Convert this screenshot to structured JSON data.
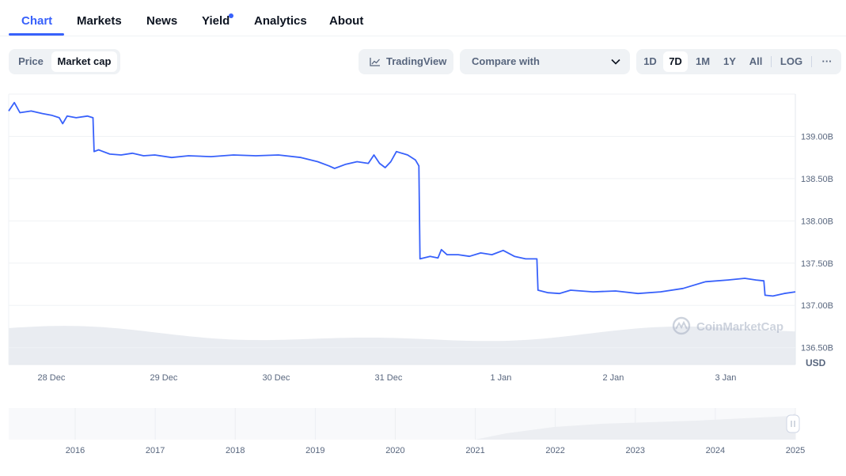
{
  "tabs": [
    {
      "label": "Chart"
    },
    {
      "label": "Markets"
    },
    {
      "label": "News"
    },
    {
      "label": "Yield"
    },
    {
      "label": "Analytics"
    },
    {
      "label": "About"
    }
  ],
  "toggle": {
    "price": "Price",
    "market_cap": "Market cap"
  },
  "tradingview_label": "TradingView",
  "compare_label": "Compare with",
  "ranges": [
    "1D",
    "7D",
    "1M",
    "1Y",
    "All"
  ],
  "log_label": "LOG",
  "more_label": "···",
  "watermark": "CoinMarketCap",
  "currency": "USD",
  "colors": {
    "line": "#3861fb",
    "accent": "#3861fb",
    "volume": "#e9ecf1",
    "grid": "#eff2f5",
    "overview": "#eceef2"
  },
  "chart_data": {
    "type": "line",
    "title": "",
    "ylabel": "USD",
    "ylim": [
      136.3,
      139.5
    ],
    "yticks": [
      {
        "v": 136.5,
        "label": "136.50B"
      },
      {
        "v": 137.0,
        "label": "137.00B"
      },
      {
        "v": 137.5,
        "label": "137.50B"
      },
      {
        "v": 138.0,
        "label": "138.00B"
      },
      {
        "v": 138.5,
        "label": "138.50B"
      },
      {
        "v": 139.0,
        "label": "139.00B"
      }
    ],
    "xlim": [
      0,
      7.0
    ],
    "xticks": [
      {
        "v": 0.38,
        "label": "28 Dec"
      },
      {
        "v": 1.38,
        "label": "29 Dec"
      },
      {
        "v": 2.38,
        "label": "30 Dec"
      },
      {
        "v": 3.38,
        "label": "31 Dec"
      },
      {
        "v": 4.38,
        "label": "1 Jan"
      },
      {
        "v": 5.38,
        "label": "2 Jan"
      },
      {
        "v": 6.38,
        "label": "3 Jan"
      }
    ],
    "series": [
      {
        "values": [
          [
            0.0,
            139.3
          ],
          [
            0.05,
            139.4
          ],
          [
            0.1,
            139.28
          ],
          [
            0.2,
            139.3
          ],
          [
            0.3,
            139.27
          ],
          [
            0.38,
            139.25
          ],
          [
            0.45,
            139.22
          ],
          [
            0.48,
            139.15
          ],
          [
            0.52,
            139.24
          ],
          [
            0.6,
            139.22
          ],
          [
            0.7,
            139.24
          ],
          [
            0.75,
            139.22
          ],
          [
            0.76,
            138.82
          ],
          [
            0.8,
            138.84
          ],
          [
            0.9,
            138.79
          ],
          [
            1.0,
            138.78
          ],
          [
            1.1,
            138.8
          ],
          [
            1.2,
            138.77
          ],
          [
            1.3,
            138.78
          ],
          [
            1.45,
            138.75
          ],
          [
            1.6,
            138.77
          ],
          [
            1.8,
            138.76
          ],
          [
            2.0,
            138.78
          ],
          [
            2.2,
            138.77
          ],
          [
            2.4,
            138.78
          ],
          [
            2.6,
            138.75
          ],
          [
            2.75,
            138.7
          ],
          [
            2.85,
            138.65
          ],
          [
            2.9,
            138.62
          ],
          [
            3.0,
            138.67
          ],
          [
            3.1,
            138.7
          ],
          [
            3.2,
            138.68
          ],
          [
            3.25,
            138.78
          ],
          [
            3.3,
            138.68
          ],
          [
            3.35,
            138.63
          ],
          [
            3.4,
            138.7
          ],
          [
            3.45,
            138.82
          ],
          [
            3.55,
            138.78
          ],
          [
            3.62,
            138.72
          ],
          [
            3.65,
            138.65
          ],
          [
            3.66,
            137.55
          ],
          [
            3.75,
            137.58
          ],
          [
            3.82,
            137.56
          ],
          [
            3.85,
            137.66
          ],
          [
            3.9,
            137.6
          ],
          [
            4.0,
            137.6
          ],
          [
            4.1,
            137.58
          ],
          [
            4.2,
            137.62
          ],
          [
            4.3,
            137.6
          ],
          [
            4.4,
            137.65
          ],
          [
            4.5,
            137.58
          ],
          [
            4.6,
            137.55
          ],
          [
            4.7,
            137.55
          ],
          [
            4.71,
            137.18
          ],
          [
            4.8,
            137.15
          ],
          [
            4.9,
            137.14
          ],
          [
            5.0,
            137.18
          ],
          [
            5.2,
            137.16
          ],
          [
            5.4,
            137.17
          ],
          [
            5.6,
            137.14
          ],
          [
            5.8,
            137.16
          ],
          [
            6.0,
            137.2
          ],
          [
            6.2,
            137.28
          ],
          [
            6.4,
            137.3
          ],
          [
            6.55,
            137.32
          ],
          [
            6.65,
            137.3
          ],
          [
            6.72,
            137.29
          ],
          [
            6.73,
            137.12
          ],
          [
            6.8,
            137.11
          ],
          [
            6.9,
            137.14
          ],
          [
            7.0,
            137.16
          ]
        ]
      }
    ],
    "overview": {
      "type": "area",
      "xticks": [
        "2016",
        "2017",
        "2018",
        "2019",
        "2020",
        "2021",
        "2022",
        "2023",
        "2024",
        "2025"
      ]
    }
  }
}
